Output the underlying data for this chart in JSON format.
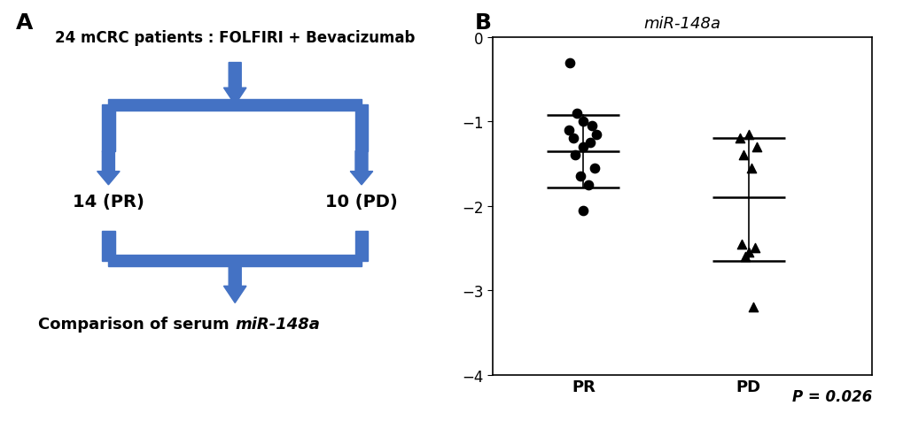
{
  "panel_A_label": "A",
  "panel_B_label": "B",
  "flow_title": "24 mCRC patients : FOLFIRI + Bevacizumab",
  "flow_left": "14 (PR)",
  "flow_right": "10 (PD)",
  "arrow_color": "#4472C4",
  "plot_title": "miR-148a",
  "pr_data": [
    -0.3,
    -0.9,
    -1.0,
    -1.05,
    -1.1,
    -1.15,
    -1.2,
    -1.25,
    -1.3,
    -1.4,
    -1.55,
    -1.65,
    -1.75,
    -2.05
  ],
  "pd_data": [
    -1.15,
    -1.2,
    -1.3,
    -1.4,
    -1.55,
    -2.45,
    -2.5,
    -2.55,
    -2.6,
    -3.2
  ],
  "pr_mean": -1.35,
  "pr_sd_upper": -0.92,
  "pr_sd_lower": -1.78,
  "pd_mean": -1.9,
  "pd_sd_upper": -1.2,
  "pd_sd_lower": -2.65,
  "ylim": [
    -4,
    0
  ],
  "yticks": [
    0,
    -1,
    -2,
    -3,
    -4
  ],
  "xlabel_pr": "PR",
  "xlabel_pd": "PD",
  "pvalue_text": "P = 0.026",
  "bg_color": "#ffffff"
}
